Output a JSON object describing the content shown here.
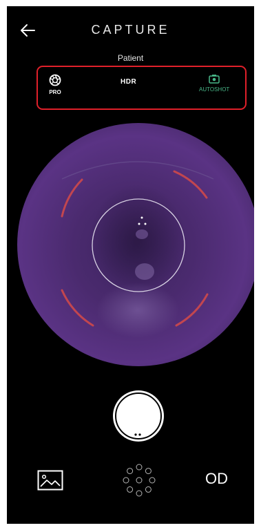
{
  "header": {
    "title": "CAPTURE",
    "subtitle": "Patient",
    "back_icon": "arrow-left-icon"
  },
  "modes": {
    "pro": {
      "label": "PRO",
      "icon": "aperture-icon"
    },
    "hdr": {
      "label": "HDR"
    },
    "autoshot": {
      "label": "AUTOSHOT",
      "icon": "camera-icon",
      "color": "#49b889"
    }
  },
  "colors": {
    "background": "#000000",
    "highlight_border": "#e0202a",
    "fundus": "#4a2a6e",
    "guide_arcs": "#c2464f"
  },
  "bottom": {
    "gallery_icon": "image-icon",
    "fixation_icon": "fixation-dots-icon",
    "eye_label": "OD"
  }
}
